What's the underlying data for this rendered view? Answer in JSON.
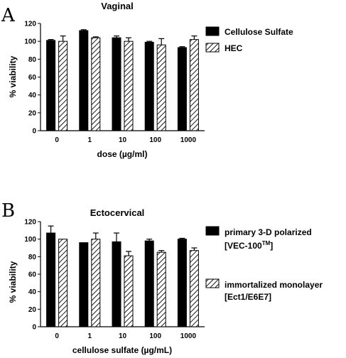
{
  "chart_data": [
    {
      "panel_label": "A",
      "type": "bar",
      "title": "Vaginal",
      "xlabel": "dose (µg/ml)",
      "ylabel": "% viability",
      "ylim": [
        0,
        120
      ],
      "yticks": [
        0,
        20,
        40,
        60,
        80,
        100,
        120
      ],
      "categories": [
        "0",
        "1",
        "10",
        "100",
        "1000"
      ],
      "legend_position": "right",
      "series": [
        {
          "name": "Cellulose Sulfate",
          "fill": "solid",
          "color": "#000000",
          "values": [
            101,
            112,
            104,
            99,
            93
          ],
          "errors": [
            1,
            1,
            2,
            1,
            1
          ]
        },
        {
          "name": "HEC",
          "fill": "hatched",
          "color": "#000000",
          "values": [
            100,
            104,
            100,
            96,
            102
          ],
          "errors": [
            6,
            1,
            4,
            7,
            4
          ]
        }
      ]
    },
    {
      "panel_label": "B",
      "type": "bar",
      "title": "Ectocervical",
      "xlabel": "cellulose sulfate (µg/mL)",
      "ylabel": "% viability",
      "ylim": [
        0,
        120
      ],
      "yticks": [
        0,
        20,
        40,
        60,
        80,
        100,
        120
      ],
      "categories": [
        "0",
        "1",
        "10",
        "100",
        "1000"
      ],
      "legend_position": "right",
      "series": [
        {
          "name": "primary 3-D polarized",
          "name_line2": "[VEC-100",
          "name_sup": "TM",
          "name_tail": "]",
          "fill": "solid",
          "color": "#000000",
          "values": [
            107,
            96,
            97,
            98,
            100
          ],
          "errors": [
            8,
            0,
            10,
            2,
            1
          ]
        },
        {
          "name": "immortalized monolayer",
          "name_line2": "[Ect1/E6E7]",
          "fill": "hatched",
          "color": "#000000",
          "values": [
            100,
            100,
            81,
            85,
            87
          ],
          "errors": [
            0,
            7,
            5,
            2,
            3
          ]
        }
      ]
    }
  ]
}
